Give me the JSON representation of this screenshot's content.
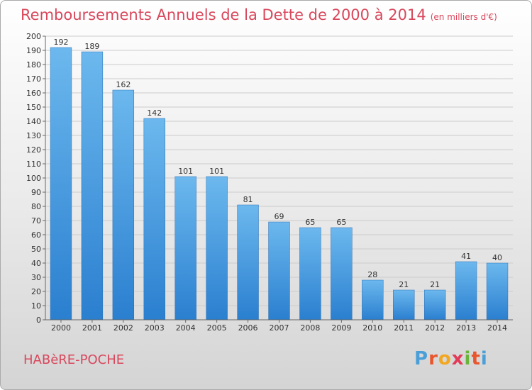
{
  "chart_data": {
    "type": "bar",
    "title": "Remboursements Annuels de la Dette de 2000 à 2014",
    "subtitle": "(en milliers d'€)",
    "categories": [
      "2000",
      "2001",
      "2002",
      "2003",
      "2004",
      "2005",
      "2006",
      "2007",
      "2008",
      "2009",
      "2010",
      "2011",
      "2012",
      "2013",
      "2014"
    ],
    "values": [
      192,
      189,
      162,
      142,
      101,
      101,
      81,
      69,
      65,
      65,
      28,
      21,
      21,
      41,
      40
    ],
    "ylim": [
      0,
      200
    ],
    "ytick_step": 10,
    "grid": true,
    "bar_color_top": "#6cb8ee",
    "bar_color_bottom": "#2a7fcf"
  },
  "footer": {
    "commune": "HABèRE-POCHE",
    "logo": [
      "P",
      "r",
      "o",
      "x",
      "i",
      "t",
      "i"
    ],
    "logo_colors": [
      "#4a9fd8",
      "#e8562d",
      "#f2a720",
      "#e23b57",
      "#6ab43c",
      "#e8562d",
      "#4a9fd8"
    ]
  },
  "colors": {
    "title": "#d9475c",
    "grid": "#cccccc",
    "axis": "#666666"
  }
}
